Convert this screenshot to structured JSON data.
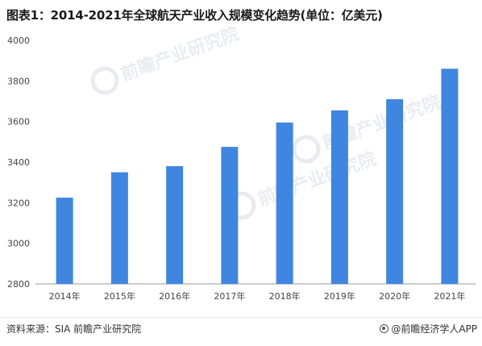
{
  "chart_data": {
    "type": "bar",
    "title": "图表1：2014-2021年全球航天产业收入规模变化趋势(单位：亿美元)",
    "categories": [
      "2014年",
      "2015年",
      "2016年",
      "2017年",
      "2018年",
      "2019年",
      "2020年",
      "2021年"
    ],
    "values": [
      3225,
      3350,
      3380,
      3475,
      3595,
      3655,
      3710,
      3860
    ],
    "ylim": [
      2800,
      4000
    ],
    "yticks": [
      2800,
      3000,
      3200,
      3400,
      3600,
      3800,
      4000
    ],
    "xlabel": "",
    "ylabel": "",
    "bar_color": "#3f86e0",
    "grid": false,
    "legend": "none"
  },
  "footer": {
    "source": "资料来源：SIA 前瞻产业研究院",
    "brand": "@前瞻经济学人APP"
  },
  "watermark": {
    "text": "前瞻产业研究院",
    "icon": "qianzhan-logo-icon"
  }
}
